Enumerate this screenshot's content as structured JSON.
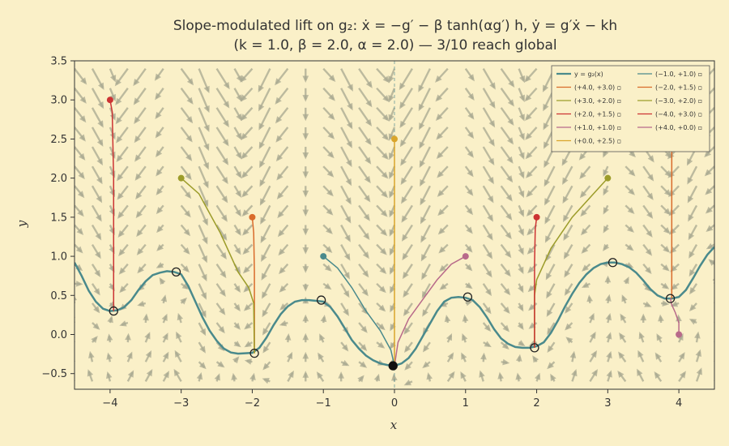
{
  "chart_data": {
    "type": "line",
    "title_line1": "Slope-modulated lift on g₂: ẋ = −g′ − β tanh(αg′) h, ẏ = g′ẋ − kh",
    "title_line2": "(k = 1.0, β = 2.0, α = 2.0) — 3/10 reach global",
    "xlabel": "x",
    "ylabel": "y",
    "xlim": [
      -4.5,
      4.5
    ],
    "ylim": [
      -0.7,
      3.5
    ],
    "xticks": [
      -4,
      -3,
      -2,
      -1,
      0,
      1,
      2,
      3,
      4
    ],
    "xtick_labels": [
      "−4",
      "−3",
      "−2",
      "−1",
      "0",
      "1",
      "2",
      "3",
      "4"
    ],
    "yticks": [
      -0.5,
      0.0,
      0.5,
      1.0,
      1.5,
      2.0,
      2.5,
      3.0,
      3.5
    ],
    "ytick_labels": [
      "−0.5",
      "0.0",
      "0.5",
      "1.0",
      "1.5",
      "2.0",
      "2.5",
      "3.0",
      "3.5"
    ],
    "grid": false,
    "legend_position": "top-right",
    "curve": {
      "name": "y = g₂(x)",
      "color": "#4a8a8c",
      "x": [
        -4.5,
        -4.4,
        -4.3,
        -4.2,
        -4.1,
        -4.0,
        -3.9,
        -3.8,
        -3.7,
        -3.6,
        -3.5,
        -3.4,
        -3.3,
        -3.2,
        -3.1,
        -3.0,
        -2.9,
        -2.8,
        -2.7,
        -2.6,
        -2.5,
        -2.4,
        -2.3,
        -2.2,
        -2.1,
        -2.0,
        -1.9,
        -1.8,
        -1.7,
        -1.6,
        -1.5,
        -1.4,
        -1.3,
        -1.2,
        -1.1,
        -1.0,
        -0.9,
        -0.8,
        -0.7,
        -0.6,
        -0.5,
        -0.4,
        -0.3,
        -0.2,
        -0.1,
        0.0,
        0.1,
        0.2,
        0.3,
        0.4,
        0.5,
        0.6,
        0.7,
        0.8,
        0.9,
        1.0,
        1.1,
        1.2,
        1.3,
        1.4,
        1.5,
        1.6,
        1.7,
        1.8,
        1.9,
        2.0,
        2.1,
        2.2,
        2.3,
        2.4,
        2.5,
        2.6,
        2.7,
        2.8,
        2.9,
        3.0,
        3.1,
        3.2,
        3.3,
        3.4,
        3.5,
        3.6,
        3.7,
        3.8,
        3.9,
        4.0,
        4.1,
        4.2,
        4.3,
        4.4,
        4.5
      ],
      "y": [
        0.92,
        0.75,
        0.56,
        0.42,
        0.33,
        0.3,
        0.31,
        0.35,
        0.44,
        0.57,
        0.68,
        0.76,
        0.79,
        0.81,
        0.8,
        0.77,
        0.62,
        0.42,
        0.22,
        0.05,
        -0.08,
        -0.18,
        -0.23,
        -0.245,
        -0.24,
        -0.235,
        -0.17,
        -0.04,
        0.12,
        0.26,
        0.36,
        0.42,
        0.44,
        0.44,
        0.43,
        0.42,
        0.35,
        0.23,
        0.08,
        -0.07,
        -0.18,
        -0.27,
        -0.33,
        -0.37,
        -0.39,
        -0.4,
        -0.37,
        -0.3,
        -0.18,
        -0.02,
        0.14,
        0.3,
        0.42,
        0.47,
        0.48,
        0.47,
        0.44,
        0.35,
        0.22,
        0.07,
        -0.05,
        -0.12,
        -0.16,
        -0.17,
        -0.17,
        -0.15,
        -0.1,
        0.02,
        0.18,
        0.36,
        0.52,
        0.66,
        0.77,
        0.85,
        0.9,
        0.92,
        0.92,
        0.9,
        0.86,
        0.79,
        0.69,
        0.58,
        0.5,
        0.46,
        0.46,
        0.48,
        0.57,
        0.72,
        0.88,
        1.02,
        1.12
      ]
    },
    "minima": [
      {
        "x": -3.95,
        "y": 0.3,
        "global": false
      },
      {
        "x": -1.97,
        "y": -0.24,
        "global": false
      },
      {
        "x": -0.02,
        "y": -0.4,
        "global": true
      },
      {
        "x": 1.97,
        "y": -0.17,
        "global": false
      },
      {
        "x": 3.88,
        "y": 0.46,
        "global": false
      }
    ],
    "maxima": [
      {
        "x": -3.07,
        "y": 0.8
      },
      {
        "x": -1.03,
        "y": 0.44
      },
      {
        "x": 1.03,
        "y": 0.48
      },
      {
        "x": 3.07,
        "y": 0.92
      }
    ],
    "trajectories": [
      {
        "name": "(+4.0, +3.0) ▫",
        "color": "#d96b2b",
        "x": [
          3.9,
          3.9,
          3.9,
          3.9,
          3.9
        ],
        "y": [
          3.0,
          2.4,
          1.6,
          0.9,
          0.46
        ],
        "start": null
      },
      {
        "name": "(+3.0, +2.0) ▫",
        "color": "#9c9c2a",
        "x": [
          3.0,
          2.8,
          2.5,
          2.2,
          2.0,
          1.97,
          1.97
        ],
        "y": [
          2.0,
          1.8,
          1.5,
          1.1,
          0.7,
          0.5,
          -0.17
        ],
        "start": {
          "x": 3.0,
          "y": 2.0
        }
      },
      {
        "name": "(+2.0, +1.5) ▫",
        "color": "#cc3333",
        "x": [
          2.0,
          1.98,
          1.97,
          1.97,
          1.97
        ],
        "y": [
          1.5,
          1.35,
          0.9,
          0.3,
          -0.17
        ],
        "start": {
          "x": 2.0,
          "y": 1.5
        }
      },
      {
        "name": "(+1.0, +1.0) ▫",
        "color": "#b86a8a",
        "x": [
          1.0,
          0.8,
          0.6,
          0.4,
          0.2,
          0.05,
          0.0
        ],
        "y": [
          1.0,
          0.9,
          0.7,
          0.45,
          0.2,
          -0.1,
          -0.4
        ],
        "start": {
          "x": 1.0,
          "y": 1.0
        }
      },
      {
        "name": "(+0.0, +2.5) ▫",
        "color": "#d9a52b",
        "x": [
          0.0,
          0.0,
          0.0,
          0.0
        ],
        "y": [
          2.5,
          1.5,
          0.5,
          -0.4
        ],
        "start": {
          "x": 0.0,
          "y": 2.5
        }
      },
      {
        "name": "(−1.0, +1.0) ▫",
        "color": "#4a8a8c",
        "x": [
          -1.0,
          -0.8,
          -0.6,
          -0.4,
          -0.2,
          -0.05,
          0.0
        ],
        "y": [
          1.0,
          0.85,
          0.6,
          0.3,
          0.05,
          -0.2,
          -0.4
        ],
        "start": {
          "x": -1.0,
          "y": 1.0
        }
      },
      {
        "name": "(−2.0, +1.5) ▫",
        "color": "#d96b2b",
        "x": [
          -2.0,
          -1.98,
          -1.97,
          -1.97,
          -1.97
        ],
        "y": [
          1.5,
          1.3,
          0.8,
          0.2,
          -0.24
        ],
        "start": {
          "x": -2.0,
          "y": 1.5
        }
      },
      {
        "name": "(−3.0, +2.0) ▫",
        "color": "#9c9c2a",
        "x": [
          -3.0,
          -2.75,
          -2.45,
          -2.2,
          -2.05,
          -1.98,
          -1.97
        ],
        "y": [
          2.0,
          1.8,
          1.3,
          0.8,
          0.6,
          0.4,
          -0.24
        ],
        "start": {
          "x": -3.0,
          "y": 2.0
        }
      },
      {
        "name": "(−4.0, +3.0) ▫",
        "color": "#cc3333",
        "x": [
          -4.0,
          -3.97,
          -3.95,
          -3.95,
          -3.95
        ],
        "y": [
          3.0,
          2.85,
          2.0,
          1.0,
          0.3
        ],
        "start": {
          "x": -4.0,
          "y": 3.0
        }
      },
      {
        "name": "(+4.0, +0.0) ▫",
        "color": "#b86a8a",
        "x": [
          4.0,
          4.0,
          3.95,
          3.9,
          3.88
        ],
        "y": [
          0.0,
          0.15,
          0.28,
          0.38,
          0.46
        ],
        "start": {
          "x": 4.0,
          "y": 0.0
        }
      }
    ],
    "extra_start_points": [
      {
        "x": 4.0,
        "y": 3.0,
        "color": "#d96b2b"
      }
    ],
    "quiver_color": "#a8a890",
    "quiver_params": {
      "k": 1.0,
      "beta": 2.0,
      "alpha": 2.0
    }
  }
}
